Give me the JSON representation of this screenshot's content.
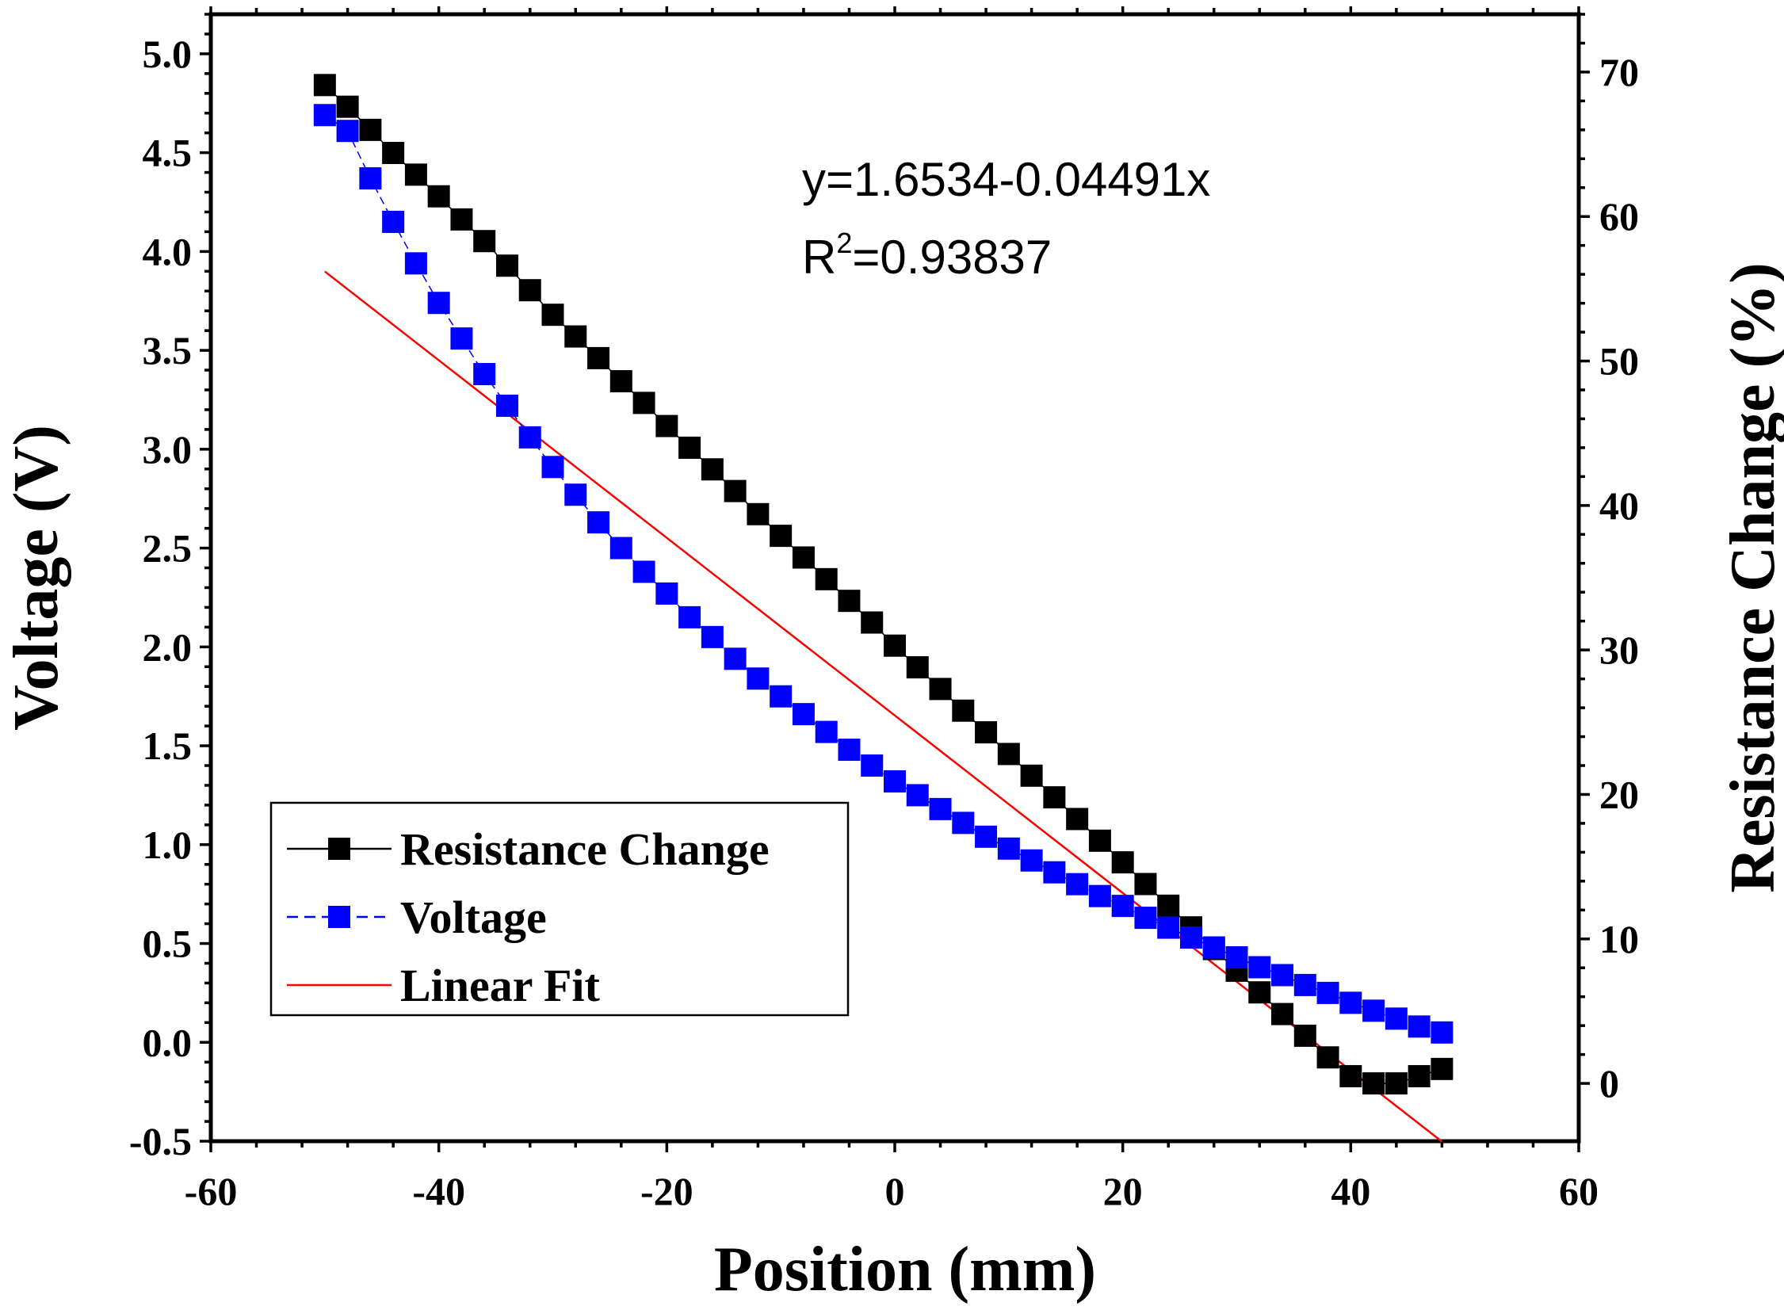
{
  "chart_data": {
    "type": "line",
    "title": "",
    "xlabel": "Position (mm)",
    "ylabel": "Voltage (V)",
    "y2label": "Resistance Change (%)",
    "xlim": [
      -60,
      60
    ],
    "ylim": [
      -0.5,
      5.2
    ],
    "y2lim": [
      -4,
      74
    ],
    "x_ticks": [
      "-60",
      "-40",
      "-20",
      "0",
      "20",
      "40",
      "60"
    ],
    "y_ticks": [
      "-0.5",
      "0.0",
      "0.5",
      "1.0",
      "1.5",
      "2.0",
      "2.5",
      "3.0",
      "3.5",
      "4.0",
      "4.5",
      "5.0"
    ],
    "y2_ticks": [
      "0",
      "10",
      "20",
      "30",
      "40",
      "50",
      "60",
      "70"
    ],
    "annotations": {
      "equation": "y=1.6534-0.04491x",
      "r2_prefix": "R",
      "r2_sup": "2",
      "r2_value": "=0.93837"
    },
    "legend": {
      "position": "bottom-left",
      "entries": [
        "Resistance Change",
        "Voltage",
        "Linear Fit"
      ]
    },
    "colors": {
      "resistance": "#000000",
      "voltage": "#0000ff",
      "fit": "#ff0000"
    },
    "x": [
      -50,
      -48,
      -46,
      -44,
      -42,
      -40,
      -38,
      -36,
      -34,
      -32,
      -30,
      -28,
      -26,
      -24,
      -22,
      -20,
      -18,
      -16,
      -14,
      -12,
      -10,
      -8,
      -6,
      -4,
      -2,
      0,
      2,
      4,
      6,
      8,
      10,
      12,
      14,
      16,
      18,
      20,
      22,
      24,
      26,
      28,
      30,
      32,
      34,
      36,
      38,
      40,
      42,
      44,
      46,
      48
    ],
    "series": [
      {
        "name": "Resistance Change",
        "axis": "right",
        "values": [
          69.1,
          67.6,
          66.0,
          64.4,
          62.9,
          61.4,
          59.8,
          58.3,
          56.6,
          54.9,
          53.2,
          51.7,
          50.2,
          48.6,
          47.1,
          45.5,
          44.0,
          42.5,
          41.0,
          39.4,
          37.9,
          36.4,
          34.9,
          33.4,
          31.9,
          30.3,
          28.8,
          27.3,
          25.8,
          24.3,
          22.8,
          21.3,
          19.8,
          18.3,
          16.8,
          15.3,
          13.8,
          12.3,
          10.8,
          9.3,
          7.8,
          6.3,
          4.8,
          3.3,
          1.8,
          0.5,
          0.0,
          0.0,
          0.5,
          1.0
        ]
      },
      {
        "name": "Voltage",
        "axis": "left",
        "values": [
          4.69,
          4.61,
          4.37,
          4.15,
          3.94,
          3.74,
          3.56,
          3.38,
          3.22,
          3.06,
          2.91,
          2.77,
          2.63,
          2.5,
          2.38,
          2.27,
          2.15,
          2.05,
          1.94,
          1.84,
          1.75,
          1.66,
          1.57,
          1.48,
          1.4,
          1.32,
          1.25,
          1.18,
          1.11,
          1.04,
          0.98,
          0.92,
          0.86,
          0.8,
          0.74,
          0.69,
          0.63,
          0.58,
          0.53,
          0.48,
          0.43,
          0.38,
          0.34,
          0.29,
          0.25,
          0.2,
          0.16,
          0.12,
          0.08,
          0.05
        ]
      },
      {
        "name": "Linear Fit",
        "axis": "left",
        "type": "line",
        "x": [
          -50,
          48
        ],
        "values": [
          3.899,
          -0.502
        ]
      }
    ]
  }
}
